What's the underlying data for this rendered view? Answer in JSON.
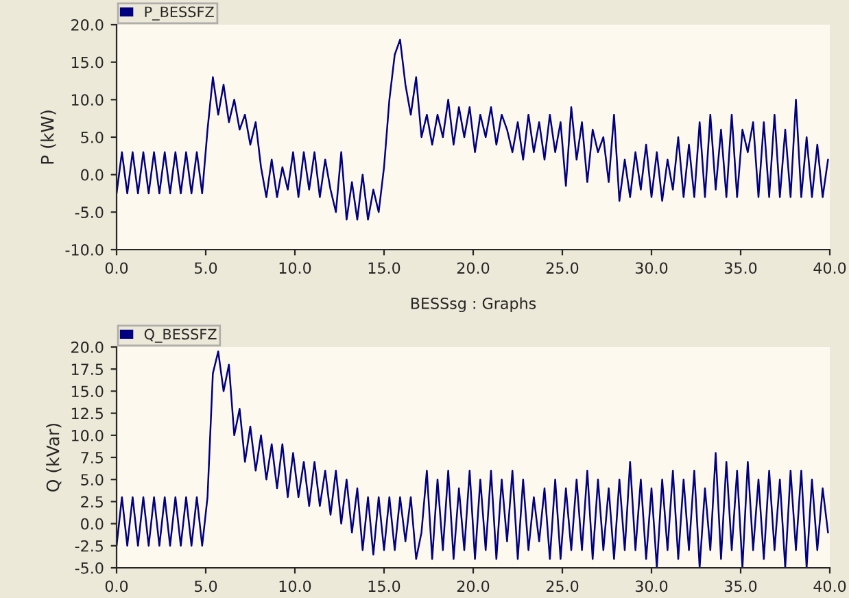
{
  "chart_data": [
    {
      "type": "line",
      "ylabel": "P (kW)",
      "legend": "top left",
      "x": [
        0,
        0.3,
        0.6,
        0.9,
        1.2,
        1.5,
        1.8,
        2.1,
        2.4,
        2.7,
        3.0,
        3.3,
        3.6,
        3.9,
        4.2,
        4.5,
        4.8,
        5.1,
        5.4,
        5.7,
        6.0,
        6.3,
        6.6,
        6.9,
        7.2,
        7.5,
        7.8,
        8.1,
        8.4,
        8.7,
        9.0,
        9.3,
        9.6,
        9.9,
        10.2,
        10.5,
        10.8,
        11.1,
        11.4,
        11.7,
        12.0,
        12.3,
        12.6,
        12.9,
        13.2,
        13.5,
        13.8,
        14.1,
        14.4,
        14.7,
        15.0,
        15.3,
        15.6,
        15.9,
        16.2,
        16.5,
        16.8,
        17.1,
        17.4,
        17.7,
        18.0,
        18.3,
        18.6,
        18.9,
        19.2,
        19.5,
        19.8,
        20.1,
        20.4,
        20.7,
        21.0,
        21.3,
        21.6,
        21.9,
        22.2,
        22.5,
        22.8,
        23.1,
        23.4,
        23.7,
        24.0,
        24.3,
        24.6,
        24.9,
        25.2,
        25.5,
        25.8,
        26.1,
        26.4,
        26.7,
        27.0,
        27.3,
        27.6,
        27.9,
        28.2,
        28.5,
        28.8,
        29.1,
        29.4,
        29.7,
        30.0,
        30.3,
        30.6,
        30.9,
        31.2,
        31.5,
        31.8,
        32.1,
        32.4,
        32.7,
        33.0,
        33.3,
        33.6,
        33.9,
        34.2,
        34.5,
        34.8,
        35.1,
        35.4,
        35.7,
        36.0,
        36.3,
        36.6,
        36.9,
        37.2,
        37.5,
        37.8,
        38.1,
        38.4,
        38.7,
        39.0,
        39.3,
        39.6,
        39.9
      ],
      "series": [
        {
          "name": "P_BESSFZ",
          "color": "#000080",
          "values": [
            -2.5,
            3,
            -2.5,
            3,
            -2.5,
            3,
            -2.5,
            3,
            -2.5,
            3,
            -2.5,
            3,
            -2.5,
            3,
            -2.5,
            3,
            -2.5,
            6,
            13,
            8,
            12,
            7,
            10,
            6,
            8,
            4,
            7,
            1,
            -3,
            2,
            -3,
            1,
            -2,
            3,
            -3,
            3,
            -2,
            3,
            -3,
            2,
            -2,
            -5,
            3,
            -6,
            -1,
            -6,
            0,
            -6,
            -2,
            -5,
            1,
            10,
            16,
            18,
            12,
            8,
            13,
            5,
            8,
            4,
            8,
            5,
            10,
            4,
            9,
            5,
            9,
            3,
            8,
            5,
            9,
            4,
            8,
            6,
            3,
            7,
            2,
            8,
            3,
            7,
            2,
            8,
            3,
            7,
            -1.5,
            9,
            2,
            7,
            -1,
            6,
            3,
            5,
            -1,
            8,
            -3.5,
            2,
            -3,
            3,
            -2,
            4,
            -3,
            3,
            -3.5,
            2,
            -2,
            5,
            -3,
            4,
            -3,
            7,
            -3,
            8,
            -2,
            6,
            -3,
            8,
            -3,
            6,
            3,
            7,
            -3,
            7,
            -3,
            8,
            -3,
            6,
            -3,
            10,
            -3,
            5,
            -3,
            4,
            -3,
            2
          ]
        }
      ],
      "xlim": [
        0,
        40
      ],
      "xticks": [
        {
          "value": 0,
          "label": "0.0"
        },
        {
          "value": 5,
          "label": "5.0"
        },
        {
          "value": 10,
          "label": "10.0"
        },
        {
          "value": 15,
          "label": "15.0"
        },
        {
          "value": 20,
          "label": "20.0"
        },
        {
          "value": 25,
          "label": "25.0"
        },
        {
          "value": 30,
          "label": "30.0"
        },
        {
          "value": 35,
          "label": "35.0"
        },
        {
          "value": 40,
          "label": "40.0"
        }
      ],
      "ylim": [
        -10,
        20
      ],
      "yticks": [
        {
          "value": -10,
          "label": "-10.0"
        },
        {
          "value": -5,
          "label": "-5.0"
        },
        {
          "value": 0,
          "label": "0.0"
        },
        {
          "value": 5,
          "label": "5.0"
        },
        {
          "value": 10,
          "label": "10.0"
        },
        {
          "value": 15,
          "label": "15.0"
        },
        {
          "value": 20,
          "label": "20.0"
        }
      ]
    },
    {
      "type": "line",
      "title": "BESSsg : Graphs",
      "ylabel": "Q (kVar)",
      "legend": "top left",
      "x": [
        0,
        0.3,
        0.6,
        0.9,
        1.2,
        1.5,
        1.8,
        2.1,
        2.4,
        2.7,
        3.0,
        3.3,
        3.6,
        3.9,
        4.2,
        4.5,
        4.8,
        5.1,
        5.4,
        5.7,
        6.0,
        6.3,
        6.6,
        6.9,
        7.2,
        7.5,
        7.8,
        8.1,
        8.4,
        8.7,
        9.0,
        9.3,
        9.6,
        9.9,
        10.2,
        10.5,
        10.8,
        11.1,
        11.4,
        11.7,
        12.0,
        12.3,
        12.6,
        12.9,
        13.2,
        13.5,
        13.8,
        14.1,
        14.4,
        14.7,
        15.0,
        15.3,
        15.6,
        15.9,
        16.2,
        16.5,
        16.8,
        17.1,
        17.4,
        17.7,
        18.0,
        18.3,
        18.6,
        18.9,
        19.2,
        19.5,
        19.8,
        20.1,
        20.4,
        20.7,
        21.0,
        21.3,
        21.6,
        21.9,
        22.2,
        22.5,
        22.8,
        23.1,
        23.4,
        23.7,
        24.0,
        24.3,
        24.6,
        24.9,
        25.2,
        25.5,
        25.8,
        26.1,
        26.4,
        26.7,
        27.0,
        27.3,
        27.6,
        27.9,
        28.2,
        28.5,
        28.8,
        29.1,
        29.4,
        29.7,
        30.0,
        30.3,
        30.6,
        30.9,
        31.2,
        31.5,
        31.8,
        32.1,
        32.4,
        32.7,
        33.0,
        33.3,
        33.6,
        33.9,
        34.2,
        34.5,
        34.8,
        35.1,
        35.4,
        35.7,
        36.0,
        36.3,
        36.6,
        36.9,
        37.2,
        37.5,
        37.8,
        38.1,
        38.4,
        38.7,
        39.0,
        39.3,
        39.6,
        39.9
      ],
      "series": [
        {
          "name": "Q_BESSFZ",
          "color": "#000080",
          "values": [
            -2.5,
            3,
            -2.5,
            3,
            -2.5,
            3,
            -2.5,
            3,
            -2.5,
            3,
            -2.5,
            3,
            -2.5,
            3,
            -2.5,
            3,
            -2.5,
            3,
            17,
            19.5,
            15,
            18,
            10,
            13,
            7,
            11,
            6,
            10,
            5,
            9,
            4,
            9,
            3,
            8,
            3,
            7,
            2,
            7,
            2,
            6,
            1,
            6,
            0,
            5,
            -1,
            4,
            -3,
            3,
            -3.5,
            3,
            -3,
            3,
            -3,
            3,
            -2,
            3,
            -4,
            -1,
            6,
            -4,
            5,
            -3,
            6,
            -4,
            4,
            -3,
            6,
            -4,
            5,
            -3,
            6,
            -4,
            5,
            -2,
            6,
            -4,
            5,
            -3,
            3,
            -2,
            4,
            -4,
            5,
            -4,
            4,
            -3,
            5,
            -3,
            6,
            -4,
            5,
            -3,
            4,
            -4,
            5,
            -3,
            7,
            -3,
            5,
            -4,
            4,
            -5,
            5,
            -3,
            6,
            -4,
            5,
            -3,
            6,
            -5,
            4,
            -3,
            8,
            -4,
            7,
            -3,
            6,
            -5,
            7,
            -3,
            5,
            -4,
            6,
            -3,
            5,
            -5,
            6,
            -3,
            6,
            -5,
            5,
            -3,
            4,
            -1
          ]
        }
      ],
      "xlim": [
        0,
        40
      ],
      "xticks": [
        {
          "value": 0,
          "label": "0.0"
        },
        {
          "value": 5,
          "label": "5.0"
        },
        {
          "value": 10,
          "label": "10.0"
        },
        {
          "value": 15,
          "label": "15.0"
        },
        {
          "value": 20,
          "label": "20.0"
        },
        {
          "value": 25,
          "label": "25.0"
        },
        {
          "value": 30,
          "label": "30.0"
        },
        {
          "value": 35,
          "label": "35.0"
        },
        {
          "value": 40,
          "label": "40.0"
        }
      ],
      "ylim": [
        -5,
        20
      ],
      "yticks": [
        {
          "value": -5,
          "label": "-5.0"
        },
        {
          "value": -2.5,
          "label": "-2.5"
        },
        {
          "value": 0,
          "label": "0.0"
        },
        {
          "value": 2.5,
          "label": "2.5"
        },
        {
          "value": 5,
          "label": "5.0"
        },
        {
          "value": 7.5,
          "label": "7.5"
        },
        {
          "value": 10,
          "label": "10.0"
        },
        {
          "value": 12.5,
          "label": "12.5"
        },
        {
          "value": 15,
          "label": "15.0"
        },
        {
          "value": 17.5,
          "label": "17.5"
        },
        {
          "value": 20,
          "label": "20.0"
        }
      ]
    }
  ]
}
